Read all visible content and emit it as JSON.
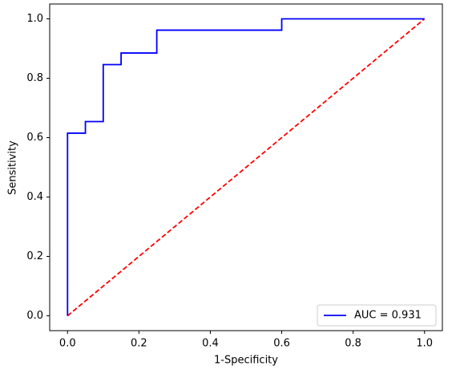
{
  "chart_data": {
    "type": "line",
    "xlabel": "1-Specificity",
    "ylabel": "Sensitivity",
    "xlim": [
      -0.05,
      1.05
    ],
    "ylim": [
      -0.05,
      1.05
    ],
    "xticks": [
      {
        "value": 0,
        "label": "0.0"
      },
      {
        "value": 0.2,
        "label": "0.2"
      },
      {
        "value": 0.4,
        "label": "0.4"
      },
      {
        "value": 0.6,
        "label": "0.6"
      },
      {
        "value": 0.8,
        "label": "0.8"
      },
      {
        "value": 1,
        "label": "1.0"
      }
    ],
    "yticks": [
      {
        "value": 0,
        "label": "0.0"
      },
      {
        "value": 0.2,
        "label": "0.2"
      },
      {
        "value": 0.4,
        "label": "0.4"
      },
      {
        "value": 0.6,
        "label": "0.6"
      },
      {
        "value": 0.8,
        "label": "0.8"
      },
      {
        "value": 1,
        "label": "1.0"
      }
    ],
    "legend": "lower right",
    "series": [
      {
        "name": "AUC = 0.931",
        "color": "#0000ff",
        "style": "solid",
        "x": [
          0,
          0,
          0.05,
          0.05,
          0.1,
          0.1,
          0.15,
          0.15,
          0.25,
          0.25,
          0.6,
          0.6,
          1.0
        ],
        "values": [
          0,
          0.615,
          0.615,
          0.654,
          0.654,
          0.846,
          0.846,
          0.885,
          0.885,
          0.962,
          0.962,
          1.0,
          1.0
        ]
      },
      {
        "color": "#ff0000",
        "style": "dashed",
        "x": [
          0,
          1
        ],
        "values": [
          0,
          1
        ]
      }
    ]
  }
}
